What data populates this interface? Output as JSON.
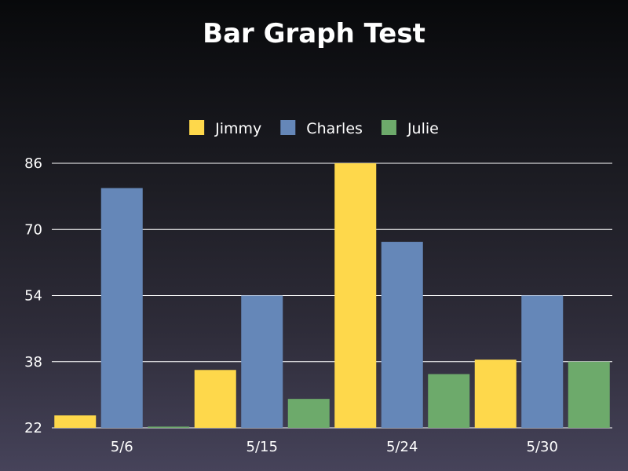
{
  "chart_data": {
    "type": "bar",
    "title": "Bar Graph Test",
    "xlabel": "",
    "ylabel": "",
    "categories": [
      "5/6",
      "5/15",
      "5/24",
      "5/30"
    ],
    "series": [
      {
        "name": "Jimmy",
        "color": "#fed84b",
        "values": [
          25,
          36,
          86,
          38.5
        ]
      },
      {
        "name": "Charles",
        "color": "#6587b8",
        "values": [
          80,
          54,
          67,
          54
        ]
      },
      {
        "name": "Julie",
        "color": "#6daa6b",
        "values": [
          22.3,
          29,
          35,
          38
        ]
      }
    ],
    "yticks": [
      22,
      38,
      54,
      70,
      86
    ],
    "ylim": [
      22,
      86
    ],
    "grid": true,
    "legend_position": "top-center"
  }
}
